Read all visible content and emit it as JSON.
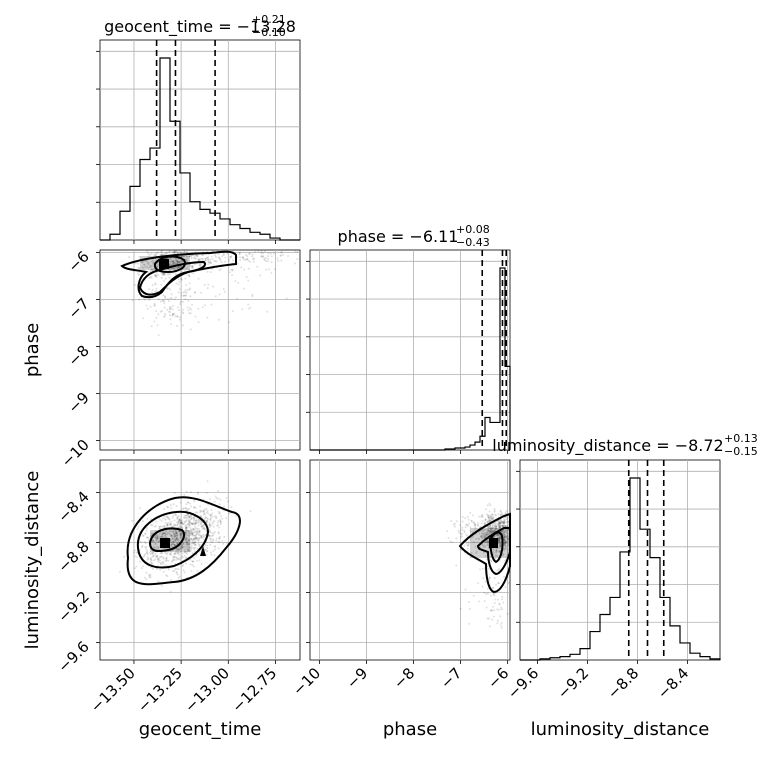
{
  "figure": {
    "title_geocent": {
      "main": "geocent_time = −13.28",
      "sup": "+0.21",
      "sub": "−0.10"
    },
    "title_phase": {
      "main": "phase = −6.11",
      "sup": "+0.08",
      "sub": "−0.43"
    },
    "title_lumdist": {
      "main": "luminosity_distance = −8.72",
      "sup": "+0.13",
      "sub": "−0.15"
    }
  },
  "chart_data": {
    "type": "corner",
    "parameters": [
      "geocent_time",
      "phase",
      "luminosity_distance"
    ],
    "ranges": {
      "geocent_time": [
        -13.68,
        -12.62
      ],
      "phase": [
        -10.2,
        -5.95
      ],
      "luminosity_distance": [
        -9.74,
        -8.14
      ]
    },
    "ticks": {
      "geocent_time": {
        "values": [
          -13.5,
          -13.25,
          -13.0,
          -12.75
        ],
        "labels": [
          "−13.50",
          "−13.25",
          "−13.00",
          "−12.75"
        ]
      },
      "phase": {
        "values": [
          -10,
          -9,
          -8,
          -7,
          -6
        ],
        "labels": [
          "−10",
          "−9",
          "−8",
          "−7",
          "−6"
        ]
      },
      "luminosity_distance": {
        "values": [
          -9.6,
          -9.2,
          -8.8,
          -8.4
        ],
        "labels": [
          "−9.6",
          "−9.2",
          "−8.8",
          "−8.4"
        ]
      }
    },
    "quantiles": {
      "geocent_time": [
        -13.38,
        -13.28,
        -13.07
      ],
      "phase": [
        -6.54,
        -6.11,
        -6.03
      ],
      "luminosity_distance": [
        -8.87,
        -8.72,
        -8.59
      ]
    },
    "histograms": {
      "geocent_time": {
        "edges_range": [
          -13.68,
          -12.62
        ],
        "counts": [
          0,
          3,
          15,
          28,
          42,
          48,
          95,
          62,
          35,
          20,
          16,
          14,
          11,
          8,
          6,
          4,
          3,
          1,
          0,
          0
        ]
      },
      "phase": {
        "edges_range": [
          -10.2,
          -5.95
        ],
        "counts": [
          0,
          0,
          0,
          0,
          0,
          0,
          0,
          0,
          0,
          0,
          0,
          0,
          0,
          0,
          0,
          0,
          0,
          0,
          0,
          0,
          0,
          0,
          0,
          0,
          0,
          0,
          0,
          1,
          1,
          2,
          2,
          3,
          5,
          8,
          14,
          33,
          28,
          28,
          185,
          85
        ]
      },
      "luminosity_distance": {
        "edges_range": [
          -9.74,
          -8.14
        ],
        "counts": [
          0,
          0,
          1,
          2,
          3,
          5,
          10,
          25,
          40,
          55,
          95,
          160,
          115,
          90,
          55,
          30,
          15,
          6,
          3,
          1
        ]
      }
    }
  }
}
